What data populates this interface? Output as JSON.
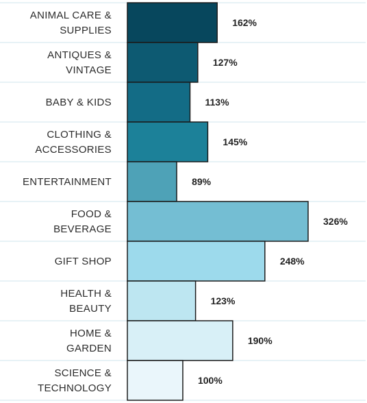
{
  "chart_data": {
    "type": "bar",
    "orientation": "horizontal",
    "title": "",
    "xlabel": "",
    "ylabel": "",
    "categories": [
      [
        "ANIMAL CARE &",
        "SUPPLIES"
      ],
      [
        "ANTIQUES &",
        "VINTAGE"
      ],
      [
        "BABY & KIDS"
      ],
      [
        "CLOTHING &",
        "ACCESSORIES"
      ],
      [
        "ENTERTAINMENT"
      ],
      [
        "FOOD &",
        "BEVERAGE"
      ],
      [
        "GIFT SHOP"
      ],
      [
        "HEALTH &",
        "BEAUTY"
      ],
      [
        "HOME &",
        "GARDEN"
      ],
      [
        "SCIENCE &",
        "TECHNOLOGY"
      ]
    ],
    "values": [
      162,
      127,
      113,
      145,
      89,
      326,
      248,
      123,
      190,
      100
    ],
    "value_labels": [
      "162%",
      "127%",
      "113%",
      "145%",
      "89%",
      "326%",
      "248%",
      "123%",
      "190%",
      "100%"
    ],
    "colors": [
      "#07475d",
      "#0d5a72",
      "#136c86",
      "#1c8199",
      "#4ea2b7",
      "#74bed3",
      "#9ddaec",
      "#bde6f1",
      "#d8f0f7",
      "#eaf6fb"
    ],
    "xlim": [
      0,
      326
    ],
    "grid": true,
    "legend": "none"
  }
}
